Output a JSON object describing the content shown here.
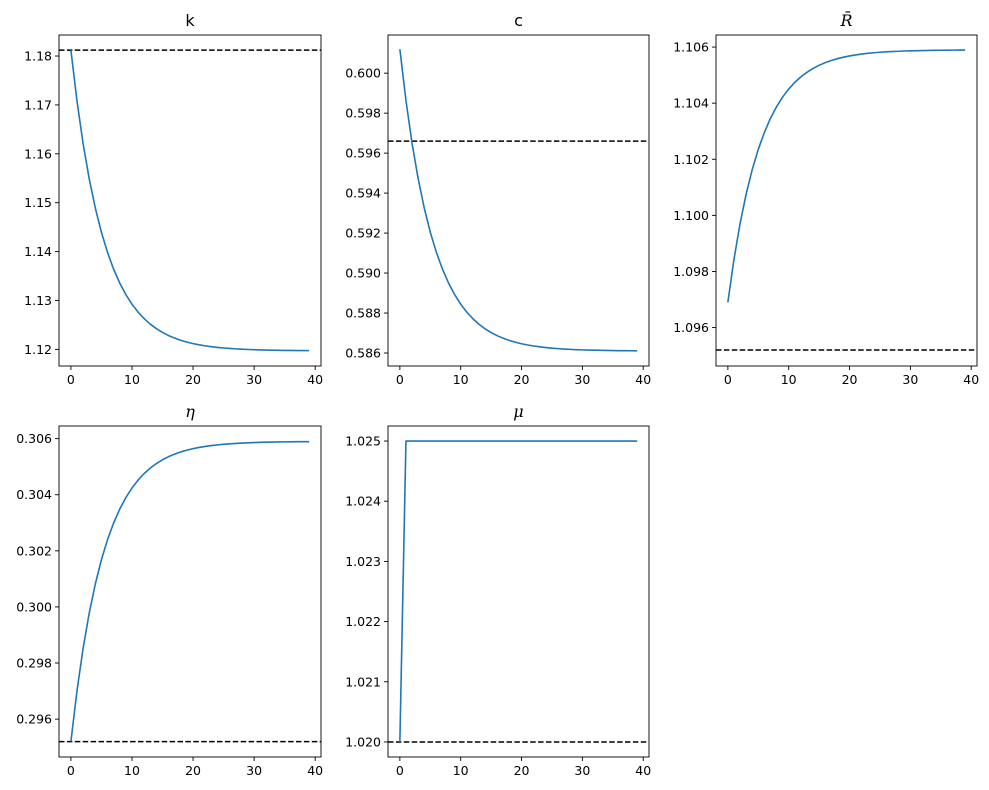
{
  "chart_data": [
    {
      "type": "line",
      "title": "k",
      "xlim": [
        -1.95,
        40.95
      ],
      "ylim": [
        1.1166,
        1.1843
      ],
      "xticks": [
        0,
        10,
        20,
        30,
        40
      ],
      "yticks": [
        1.12,
        1.13,
        1.14,
        1.15,
        1.16,
        1.17,
        1.18
      ],
      "ytick_labels": [
        "1.12",
        "1.13",
        "1.14",
        "1.15",
        "1.16",
        "1.17",
        "1.18"
      ],
      "series": [
        {
          "color": "#1f77b4",
          "start": 1.1812,
          "end": 1.1197,
          "decay": 0.83,
          "x_from": 0,
          "x_to": 39
        }
      ],
      "reference_line": {
        "y": 1.1812,
        "style": "dashed",
        "color": "#000000"
      }
    },
    {
      "type": "line",
      "title": "c",
      "xlim": [
        -1.95,
        40.95
      ],
      "ylim": [
        0.58535,
        0.60191
      ],
      "xticks": [
        0,
        10,
        20,
        30,
        40
      ],
      "yticks": [
        0.586,
        0.588,
        0.59,
        0.592,
        0.594,
        0.596,
        0.598,
        0.6
      ],
      "ytick_labels": [
        "0.586",
        "0.588",
        "0.590",
        "0.592",
        "0.594",
        "0.596",
        "0.598",
        "0.600"
      ],
      "series": [
        {
          "color": "#1f77b4",
          "start": 0.6012,
          "end": 0.5861,
          "decay": 0.83,
          "x_from": 0,
          "x_to": 39
        }
      ],
      "reference_line": {
        "y": 0.5966,
        "style": "dashed",
        "color": "#000000"
      }
    },
    {
      "type": "line",
      "title": "R̄",
      "xlim": [
        -1.95,
        40.95
      ],
      "ylim": [
        1.09463,
        1.10643
      ],
      "xticks": [
        0,
        10,
        20,
        30,
        40
      ],
      "yticks": [
        1.096,
        1.098,
        1.1,
        1.102,
        1.104,
        1.106
      ],
      "ytick_labels": [
        "1.096",
        "1.098",
        "1.100",
        "1.102",
        "1.104",
        "1.106"
      ],
      "series": [
        {
          "color": "#1f77b4",
          "start": 1.0969,
          "end": 1.1059,
          "decay": 0.83,
          "x_from": 0,
          "x_to": 39
        }
      ],
      "reference_line": {
        "y": 1.0952,
        "style": "dashed",
        "color": "#000000"
      }
    },
    {
      "type": "line",
      "title": "η",
      "xlim": [
        -1.95,
        40.95
      ],
      "ylim": [
        0.29465,
        0.30645
      ],
      "xticks": [
        0,
        10,
        20,
        30,
        40
      ],
      "yticks": [
        0.296,
        0.298,
        0.3,
        0.302,
        0.304,
        0.306
      ],
      "ytick_labels": [
        "0.296",
        "0.298",
        "0.300",
        "0.302",
        "0.304",
        "0.306"
      ],
      "series": [
        {
          "color": "#1f77b4",
          "start": 0.2952,
          "end": 0.3059,
          "decay": 0.83,
          "x_from": 0,
          "x_to": 39
        }
      ],
      "reference_line": {
        "y": 0.2952,
        "style": "dashed",
        "color": "#000000"
      }
    },
    {
      "type": "line",
      "title": "μ",
      "xlim": [
        -1.95,
        40.95
      ],
      "ylim": [
        1.01975,
        1.02525
      ],
      "xticks": [
        0,
        10,
        20,
        30,
        40
      ],
      "yticks": [
        1.02,
        1.021,
        1.022,
        1.023,
        1.024,
        1.025
      ],
      "ytick_labels": [
        "1.020",
        "1.021",
        "1.022",
        "1.023",
        "1.024",
        "1.025"
      ],
      "series": [
        {
          "color": "#1f77b4",
          "x": [
            0,
            1,
            39
          ],
          "y": [
            1.02,
            1.025,
            1.025
          ]
        }
      ],
      "reference_line": {
        "y": 1.02,
        "style": "dashed",
        "color": "#000000"
      }
    }
  ]
}
